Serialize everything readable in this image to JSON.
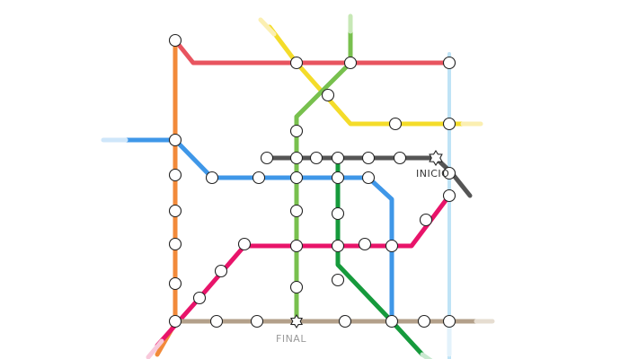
{
  "map": {
    "labels": {
      "start": "INICIO",
      "end": "FINAL"
    },
    "lines": [
      {
        "id": "orange",
        "color": "#f28a3a"
      },
      {
        "id": "red",
        "color": "#e8545f"
      },
      {
        "id": "yellow",
        "color": "#f4dc2a"
      },
      {
        "id": "lightgreen",
        "color": "#78c04e"
      },
      {
        "id": "darkgreen",
        "color": "#169a3c"
      },
      {
        "id": "lightblue",
        "color": "#bfe3f6"
      },
      {
        "id": "blue",
        "color": "#3f97e8"
      },
      {
        "id": "pink",
        "color": "#e8146a"
      },
      {
        "id": "black",
        "color": "#555555"
      },
      {
        "id": "brown",
        "color": "#b3a08a"
      }
    ]
  }
}
